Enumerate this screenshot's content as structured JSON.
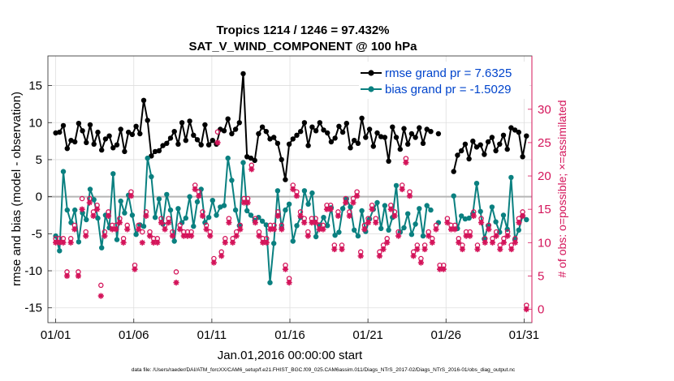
{
  "chart_data": {
    "type": "line",
    "title_line1": "Tropics 1214 / 1246 = 97.432%",
    "title_line2": "SAT_V_WIND_COMPONENT @ 100 hPa",
    "ylabel_left": "rmse and bias (model - observation)",
    "ylabel_right": "# of obs: o=possible; ×=assimilated",
    "xlabel": "Jan.01,2016 00:00:00 start",
    "footnote": "data file: /Users/raeder/DAI/ATM_forcXX/CAM6_setup/f.e21.FHIST_BGC.f09_025.CAM6assim.011/Diags_NTrS_2017-02/Diags_NTrS_2016-01/obs_diag_output.nc",
    "xlim": [
      0.5,
      31.5
    ],
    "ylim_left": [
      -17,
      19
    ],
    "ylim_right": [
      -2,
      38
    ],
    "grid": true,
    "legend_position": "top-right",
    "x_ticks": [
      {
        "value": 1,
        "label": "01/01"
      },
      {
        "value": 6,
        "label": "01/06"
      },
      {
        "value": 11,
        "label": "01/11"
      },
      {
        "value": 16,
        "label": "01/16"
      },
      {
        "value": 21,
        "label": "01/21"
      },
      {
        "value": 26,
        "label": "01/26"
      },
      {
        "value": 31,
        "label": "01/31"
      }
    ],
    "y_ticks_left": [
      -15,
      -10,
      -5,
      0,
      5,
      10,
      15
    ],
    "y_ticks_right": [
      0,
      5,
      10,
      15,
      20,
      25,
      30
    ],
    "zero_line": 0,
    "series": [
      {
        "name": "rmse grand pr = 7.6325",
        "axis": "left",
        "color": "#000000",
        "marker": "dot",
        "values": [
          8.6,
          8.7,
          9.6,
          6.5,
          7.6,
          7.4,
          9.9,
          8.9,
          7.3,
          9.7,
          7.1,
          8.7,
          6.3,
          7.8,
          8.2,
          6.6,
          7.0,
          9.1,
          6.1,
          8.7,
          8.4,
          9.5,
          8.5,
          13.0,
          10.3,
          5.5,
          6.1,
          6.2,
          6.9,
          7.2,
          7.9,
          8.8,
          7.1,
          10.0,
          7.6,
          10.2,
          8.3,
          7.7,
          7.0,
          9.7,
          7.0,
          7.6,
          7.1,
          9.1,
          8.9,
          10.5,
          8.5,
          9.1,
          10.0,
          16.6,
          5.4,
          5.2,
          4.9,
          8.5,
          9.4,
          8.8,
          7.8,
          8.0,
          7.2,
          5.0,
          2.3,
          7.1,
          7.8,
          8.3,
          8.8,
          10.0,
          6.9,
          9.4,
          8.9,
          10.0,
          9.0,
          8.6,
          7.4,
          7.9,
          9.5,
          8.7,
          9.9,
          6.6,
          7.6,
          7.2,
          10.6,
          8.0,
          9.1,
          6.8,
          8.6,
          8.1,
          8.0,
          4.8,
          9.4,
          8.0,
          6.4,
          9.2,
          7.1,
          8.5,
          8.0,
          9.3,
          7.2,
          9.1,
          8.8,
          null,
          8.5,
          null,
          null,
          null,
          3.4,
          5.6,
          6.2,
          7.1,
          5.1,
          7.5,
          6.7,
          7.0,
          5.7,
          7.4,
          8.0,
          6.2,
          7.1,
          8.3,
          6.4,
          9.3,
          9.0,
          8.7,
          5.4,
          8.2
        ]
      },
      {
        "name": "bias grand pr = -1.5029",
        "axis": "left",
        "color": "#0a8080",
        "marker": "dot",
        "values": [
          -5.3,
          -7.3,
          3.4,
          -1.8,
          -3.5,
          -1.8,
          -6.1,
          -2.2,
          -3.1,
          1.0,
          -0.4,
          -2.9,
          -6.9,
          -2.5,
          -4.2,
          3.1,
          -5.8,
          -0.6,
          -2.2,
          0.2,
          -2.5,
          -5.1,
          -3.8,
          -4.0,
          5.2,
          2.7,
          -2.8,
          -0.3,
          -3.7,
          0.3,
          -1.8,
          -6.0,
          -1.6,
          -3.5,
          -2.9,
          0.0,
          -4.0,
          -0.7,
          1.0,
          -3.5,
          -2.8,
          -0.5,
          -2.5,
          -1.4,
          -1.2,
          5.2,
          2.2,
          -1.8,
          -3.9,
          4.6,
          -1.9,
          -2.5,
          -3.2,
          -2.8,
          -3.3,
          -3.8,
          -11.6,
          -6.3,
          0.8,
          -4.2,
          -1.8,
          -1.0,
          -6.0,
          -3.9,
          -2.8,
          0.8,
          -1.0,
          0.5,
          -5.4,
          -3.8,
          -2.8,
          -3.9,
          -1.5,
          -5.2,
          -4.8,
          -1.6,
          -0.3,
          -1.4,
          -4.5,
          -5.3,
          -1.9,
          -4.7,
          -3.0,
          -1.7,
          -0.8,
          -4.3,
          -1.2,
          -4.5,
          -2.8,
          1.5,
          -4.8,
          -4.2,
          -2.3,
          -5.1,
          -3.7,
          -1.6,
          -5.3,
          -1.2,
          -1.8,
          null,
          -3.5,
          null,
          null,
          null,
          0.1,
          -4.3,
          -2.6,
          -3.0,
          -2.9,
          -2.3,
          1.8,
          -2.0,
          -5.7,
          -3.9,
          -1.4,
          -3.4,
          -4.8,
          -2.5,
          -4.4,
          2.6,
          -5.8,
          -4.5,
          -2.6,
          -3.1
        ]
      },
      {
        "name": "possible obs",
        "axis": "right",
        "color": "#d4145a",
        "marker": "circle",
        "values": [
          10,
          10,
          10,
          5,
          10,
          12,
          5,
          16,
          11,
          16,
          14,
          15,
          3,
          11,
          14,
          12,
          12,
          13,
          10,
          12,
          17,
          6,
          12,
          11,
          14,
          11,
          10,
          10,
          13,
          12,
          13,
          11,
          5,
          12,
          11,
          11,
          11,
          18,
          17,
          14,
          12,
          11,
          7,
          26,
          8,
          10,
          13,
          10,
          11,
          12,
          16,
          16,
          21,
          13,
          11,
          10,
          10,
          12,
          12,
          14,
          12,
          6,
          4,
          18,
          17,
          14,
          13,
          11,
          13,
          13,
          12,
          12,
          15,
          15,
          9,
          14,
          9,
          16,
          14,
          16,
          17,
          8,
          12,
          13,
          15,
          13,
          8,
          9,
          10,
          15,
          14,
          11,
          18,
          22,
          17,
          8,
          9,
          7,
          9,
          11,
          10,
          12,
          6,
          6,
          13,
          12,
          12,
          10,
          9,
          11,
          11,
          14,
          9,
          13,
          10,
          12,
          10,
          11,
          9,
          10,
          11,
          9,
          10,
          13,
          14,
          0
        ]
      },
      {
        "name": "assimilated obs",
        "axis": "right",
        "color": "#d4145a",
        "marker": "star",
        "values": [
          10,
          10,
          10,
          5,
          10,
          12,
          5,
          15,
          11,
          16,
          14,
          15,
          2,
          11,
          14,
          12,
          12,
          13,
          10,
          12,
          17,
          6,
          12,
          10,
          14,
          11,
          10,
          10,
          13,
          12,
          13,
          11,
          4,
          12,
          11,
          11,
          11,
          18,
          17,
          14,
          12,
          11,
          7,
          25,
          8,
          10,
          13,
          10,
          11,
          12,
          16,
          16,
          21,
          13,
          11,
          10,
          10,
          12,
          12,
          14,
          12,
          6,
          4,
          18,
          17,
          14,
          13,
          11,
          13,
          13,
          12,
          12,
          15,
          15,
          9,
          14,
          9,
          16,
          14,
          16,
          17,
          8,
          12,
          13,
          15,
          13,
          8,
          9,
          10,
          15,
          14,
          11,
          18,
          22,
          17,
          8,
          9,
          7,
          9,
          11,
          10,
          12,
          6,
          6,
          13,
          12,
          12,
          10,
          9,
          11,
          11,
          14,
          9,
          13,
          10,
          12,
          10,
          11,
          9,
          10,
          11,
          9,
          10,
          13,
          14,
          0
        ]
      }
    ]
  }
}
